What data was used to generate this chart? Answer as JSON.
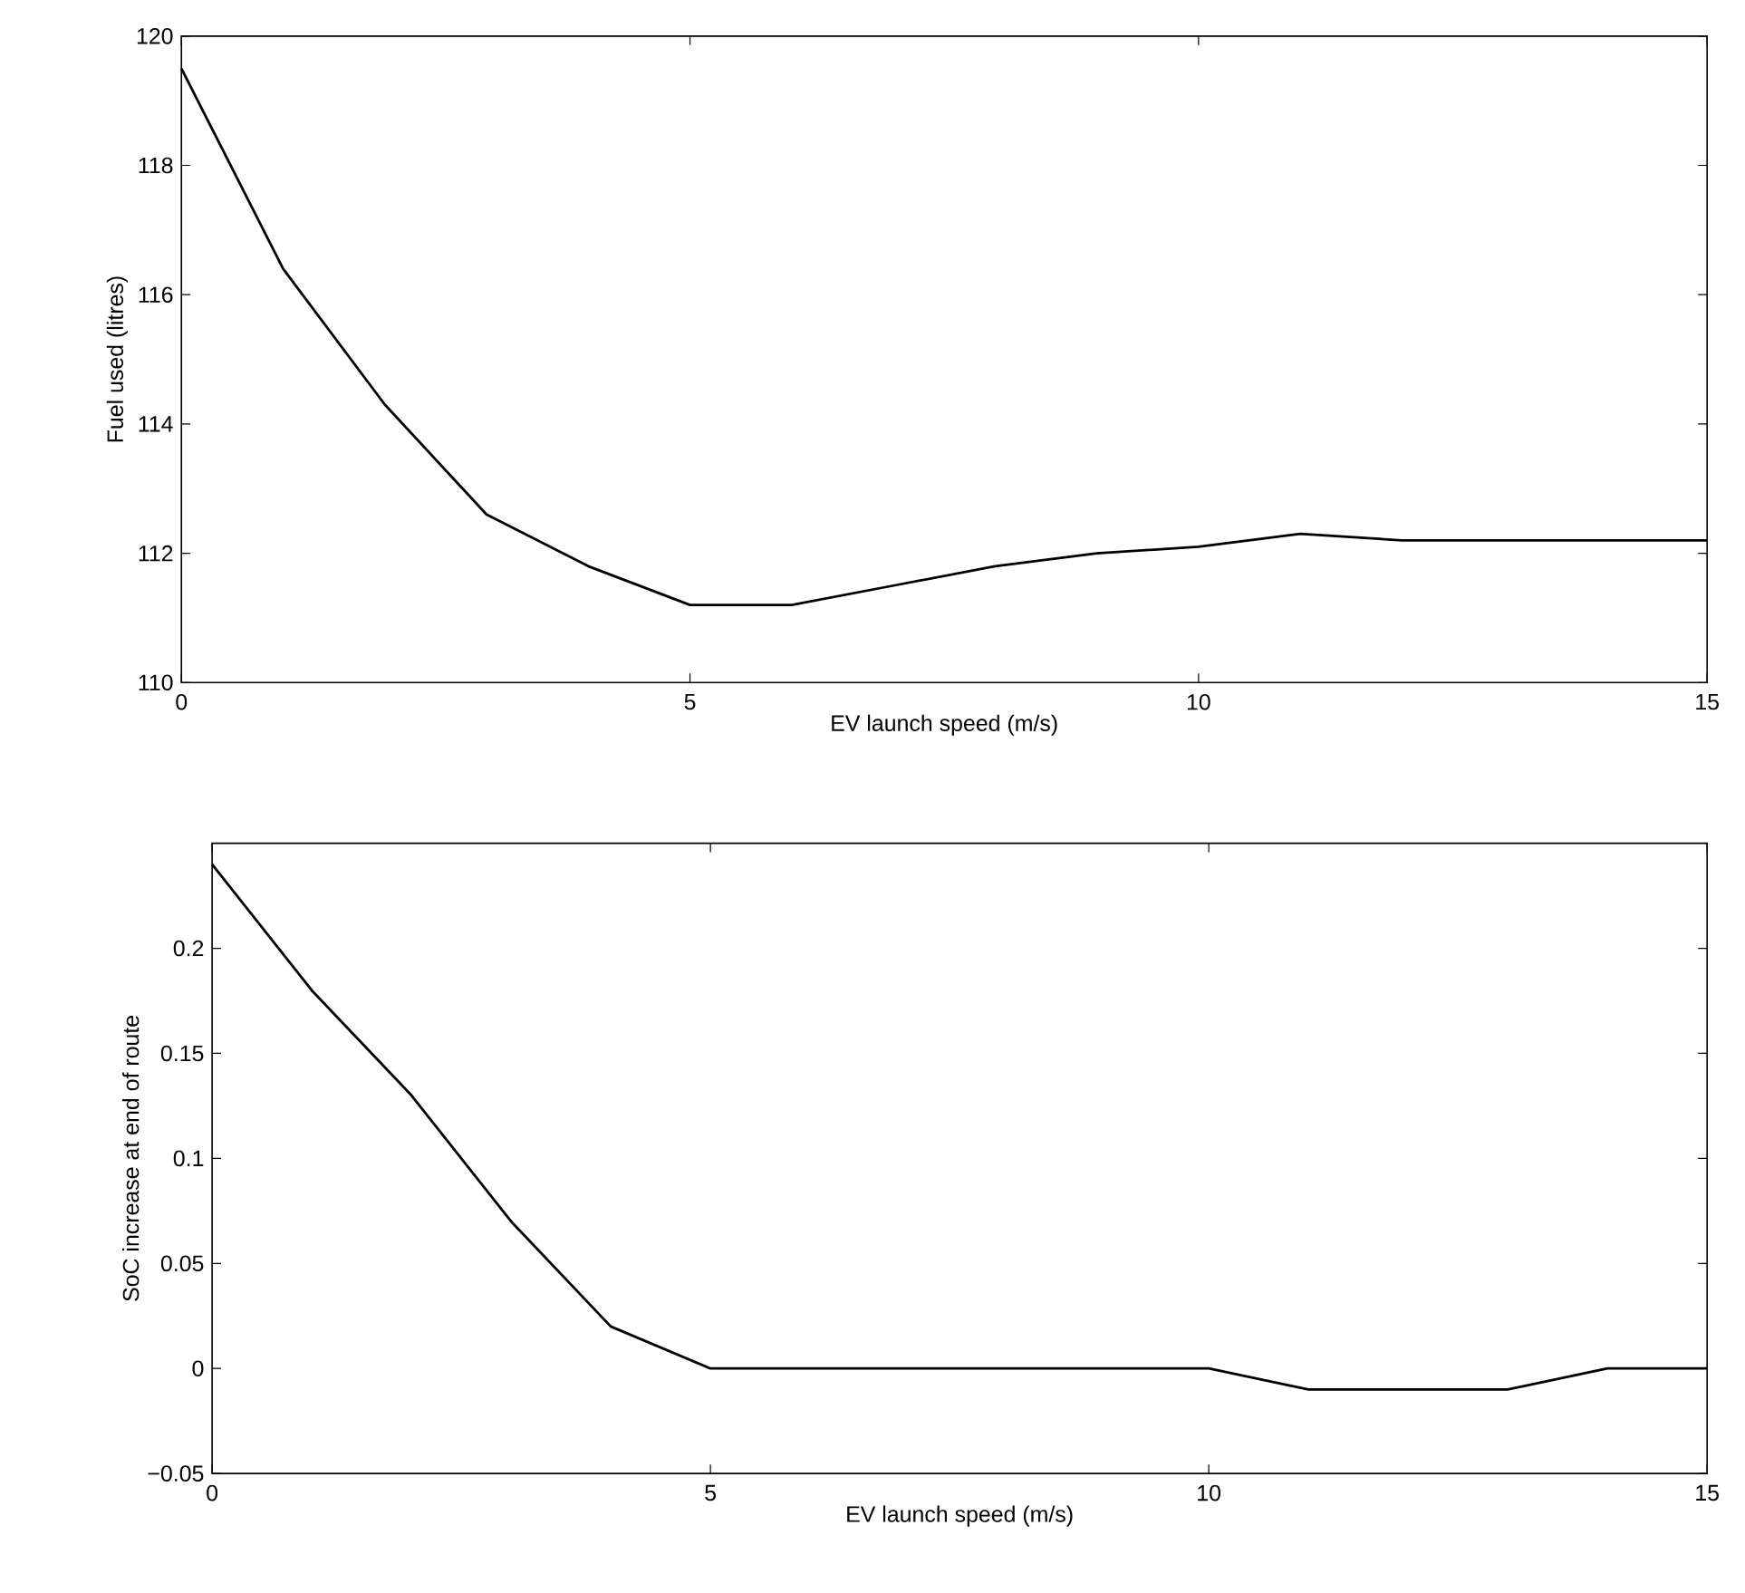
{
  "chart_data": [
    {
      "type": "line",
      "xlabel": "EV launch speed (m/s)",
      "ylabel": "Fuel used (litres)",
      "xlim": [
        0,
        15
      ],
      "xticks": [
        0,
        5,
        10,
        15
      ],
      "ylim": [
        110,
        120
      ],
      "yticks": [
        110,
        112,
        114,
        116,
        118,
        120
      ],
      "x": [
        0,
        1,
        2,
        3,
        4,
        5,
        6,
        7,
        8,
        9,
        10,
        11,
        12,
        13,
        14,
        15
      ],
      "series": [
        {
          "color": "#000000",
          "values": [
            119.5,
            116.4,
            114.3,
            112.6,
            111.8,
            111.2,
            111.2,
            111.5,
            111.8,
            112.0,
            112.1,
            112.3,
            112.2,
            112.2,
            112.2,
            112.2
          ]
        }
      ]
    },
    {
      "type": "line",
      "xlabel": "EV launch speed (m/s)",
      "ylabel": "SoC increase at end of route",
      "xlim": [
        0,
        15
      ],
      "xticks": [
        0,
        5,
        10,
        15
      ],
      "ylim": [
        -0.05,
        0.25
      ],
      "yticks": [
        {
          "value": -0.05,
          "label": "−0.05"
        },
        0,
        0.05,
        0.1,
        0.15,
        0.2
      ],
      "x": [
        0,
        1,
        2,
        3,
        4,
        5,
        6,
        7,
        8,
        9,
        10,
        11,
        12,
        13,
        14,
        15
      ],
      "series": [
        {
          "color": "#000000",
          "values": [
            0.24,
            0.18,
            0.13,
            0.07,
            0.02,
            0,
            0,
            0,
            0,
            0,
            0,
            -0.01,
            -0.01,
            -0.01,
            0,
            0
          ]
        }
      ]
    }
  ]
}
